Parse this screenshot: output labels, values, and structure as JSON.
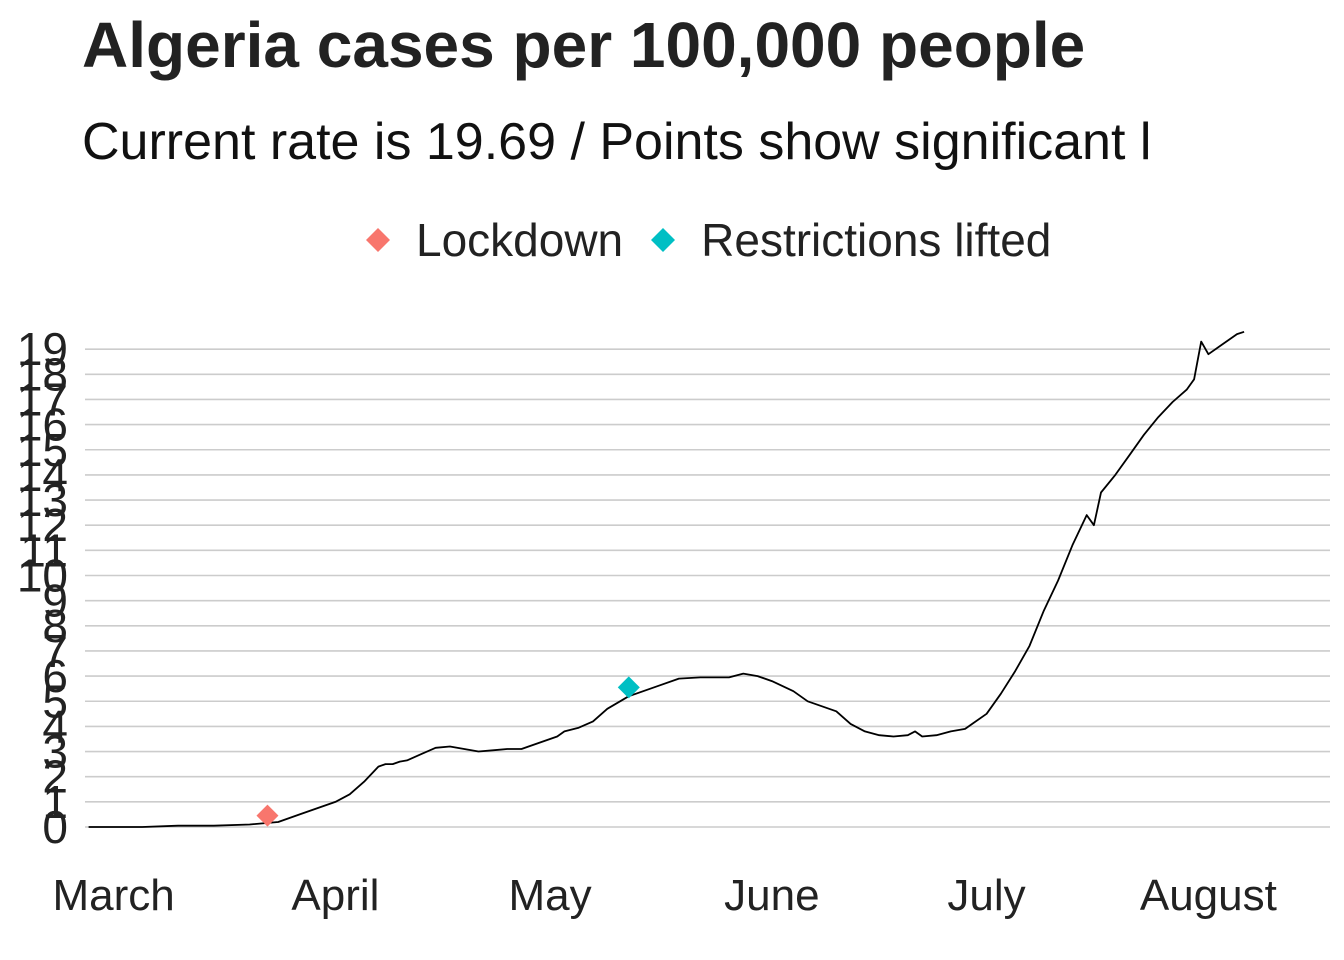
{
  "chart_data": {
    "type": "line",
    "title": "Algeria cases per 100,000 people",
    "subtitle": "Current rate is  19.69  /  Points show significant l",
    "xlabel": "",
    "ylabel": "",
    "ylim": [
      0,
      19
    ],
    "y_ticks": [
      "0",
      "1",
      "2",
      "3",
      "4",
      "5",
      "6",
      "7",
      "8",
      "9",
      "10",
      "11",
      "12",
      "13",
      "14",
      "15",
      "16",
      "17",
      "18",
      "19"
    ],
    "x_ticks": [
      {
        "label": "March",
        "day": 1
      },
      {
        "label": "April",
        "day": 32
      },
      {
        "label": "May",
        "day": 62
      },
      {
        "label": "June",
        "day": 93
      },
      {
        "label": "July",
        "day": 123
      },
      {
        "label": "August",
        "day": 154
      }
    ],
    "x_range_days": [
      -3,
      171
    ],
    "series": [
      {
        "name": "Algeria cases per 100,000 people",
        "color": "#000000",
        "points": [
          [
            -2.5,
            0
          ],
          [
            5,
            0
          ],
          [
            10,
            0.05
          ],
          [
            15,
            0.05
          ],
          [
            20,
            0.1
          ],
          [
            24,
            0.2
          ],
          [
            27,
            0.5
          ],
          [
            30,
            0.8
          ],
          [
            32,
            1.0
          ],
          [
            34,
            1.3
          ],
          [
            36,
            1.8
          ],
          [
            38,
            2.4
          ],
          [
            39,
            2.5
          ],
          [
            40,
            2.5
          ],
          [
            41,
            2.6
          ],
          [
            42,
            2.65
          ],
          [
            44,
            2.9
          ],
          [
            46,
            3.15
          ],
          [
            48,
            3.2
          ],
          [
            50,
            3.1
          ],
          [
            52,
            3.0
          ],
          [
            54,
            3.05
          ],
          [
            56,
            3.1
          ],
          [
            58,
            3.1
          ],
          [
            59,
            3.2
          ],
          [
            61,
            3.4
          ],
          [
            63,
            3.6
          ],
          [
            64,
            3.8
          ],
          [
            66,
            3.95
          ],
          [
            68,
            4.2
          ],
          [
            70,
            4.7
          ],
          [
            73,
            5.2
          ],
          [
            76,
            5.5
          ],
          [
            77,
            5.6
          ],
          [
            80,
            5.9
          ],
          [
            83,
            5.95
          ],
          [
            87,
            5.95
          ],
          [
            89,
            6.1
          ],
          [
            91,
            6.0
          ],
          [
            93,
            5.8
          ],
          [
            96,
            5.4
          ],
          [
            98,
            5.0
          ],
          [
            100,
            4.8
          ],
          [
            102,
            4.6
          ],
          [
            104,
            4.1
          ],
          [
            106,
            3.8
          ],
          [
            108,
            3.65
          ],
          [
            110,
            3.6
          ],
          [
            112,
            3.65
          ],
          [
            113,
            3.8
          ],
          [
            114,
            3.6
          ],
          [
            116,
            3.65
          ],
          [
            118,
            3.8
          ],
          [
            120,
            3.9
          ],
          [
            121,
            4.1
          ],
          [
            123,
            4.5
          ],
          [
            125,
            5.3
          ],
          [
            127,
            6.2
          ],
          [
            129,
            7.2
          ],
          [
            131,
            8.6
          ],
          [
            133,
            9.8
          ],
          [
            135,
            11.2
          ],
          [
            137,
            12.4
          ],
          [
            138,
            12.0
          ],
          [
            139,
            13.3
          ],
          [
            141,
            14.0
          ],
          [
            143,
            14.8
          ],
          [
            145,
            15.6
          ],
          [
            147,
            16.3
          ],
          [
            149,
            16.9
          ],
          [
            151,
            17.4
          ],
          [
            152,
            17.8
          ],
          [
            153,
            19.3
          ],
          [
            154,
            18.8
          ],
          [
            156,
            19.2
          ],
          [
            158,
            19.6
          ],
          [
            159,
            19.69
          ]
        ]
      }
    ],
    "events": [
      {
        "label": "Lockdown",
        "day": 22.5,
        "value": 0.45,
        "color": "#F8766D"
      },
      {
        "label": "Restrictions lifted",
        "day": 73,
        "value": 5.55,
        "color": "#00BFC4"
      }
    ],
    "legend_placement": "top",
    "grid": true
  }
}
